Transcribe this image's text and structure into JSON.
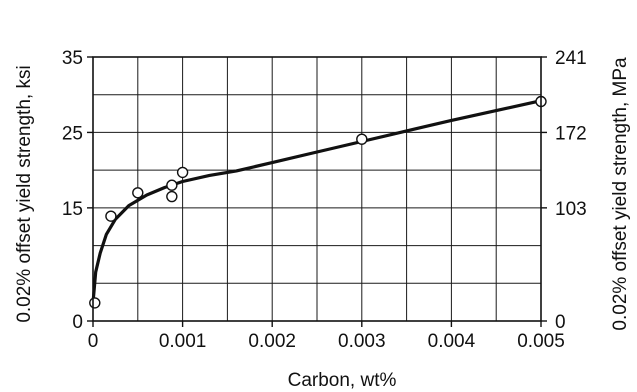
{
  "chart_data": {
    "type": "scatter",
    "xlabel": "Carbon, wt%",
    "ylabel": "0.02% offset yield strength, ksi",
    "ylabel_right": "0.02% offset yield strength, MPa",
    "xlim": [
      0,
      0.005
    ],
    "ylim": [
      0,
      35
    ],
    "grid": true,
    "x_ticks": [
      0,
      0.001,
      0.002,
      0.003,
      0.004,
      0.005
    ],
    "x_tick_labels": [
      "0",
      "0.001",
      "0.002",
      "0.003",
      "0.004",
      "0.005"
    ],
    "y_ticks": [
      0,
      15,
      25,
      35
    ],
    "y_tick_labels": [
      "0",
      "15",
      "25",
      "35"
    ],
    "y2_ticks": [
      0,
      15,
      25,
      35
    ],
    "y2_tick_labels": [
      "0",
      "103",
      "172",
      "241"
    ],
    "grid_x": [
      0,
      0.0005,
      0.001,
      0.0015,
      0.002,
      0.0025,
      0.003,
      0.0035,
      0.004,
      0.0045,
      0.005
    ],
    "grid_y": [
      0,
      5,
      10,
      15,
      20,
      25,
      30,
      35
    ],
    "series": [
      {
        "type": "scatter",
        "points": [
          [
            2e-05,
            2.4
          ],
          [
            0.0002,
            13.9
          ],
          [
            0.0005,
            17.0
          ],
          [
            0.00088,
            18.0
          ],
          [
            0.00088,
            16.5
          ],
          [
            0.001,
            19.7
          ],
          [
            0.003,
            24.1
          ],
          [
            0.005,
            29.1
          ]
        ]
      },
      {
        "type": "line",
        "points": [
          [
            0.0,
            2.4
          ],
          [
            3e-05,
            6.5
          ],
          [
            8e-05,
            9.0
          ],
          [
            0.00015,
            11.5
          ],
          [
            0.00025,
            13.5
          ],
          [
            0.0004,
            15.3
          ],
          [
            0.0006,
            16.7
          ],
          [
            0.0008,
            17.7
          ],
          [
            0.001,
            18.5
          ],
          [
            0.0013,
            19.3
          ],
          [
            0.0016,
            19.9
          ],
          [
            0.002,
            21.0
          ],
          [
            0.0025,
            22.4
          ],
          [
            0.003,
            23.8
          ],
          [
            0.0035,
            25.2
          ],
          [
            0.004,
            26.6
          ],
          [
            0.0045,
            27.9
          ],
          [
            0.005,
            29.2
          ]
        ]
      }
    ]
  }
}
